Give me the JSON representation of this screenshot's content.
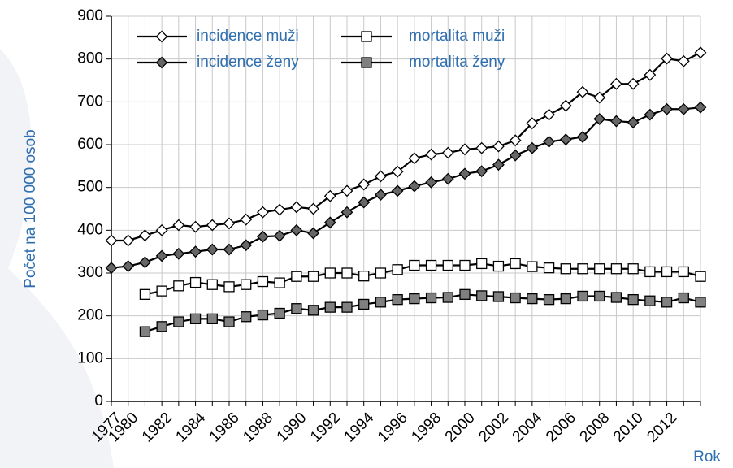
{
  "chart_data": {
    "type": "line",
    "ylabel": "Počet na 100 000 osob",
    "xlabel": "Rok",
    "categories": [
      "1977",
      "1980",
      null,
      "1982",
      null,
      "1984",
      null,
      "1986",
      null,
      "1988",
      null,
      "1990",
      null,
      "1992",
      null,
      "1994",
      null,
      "1996",
      null,
      "1998",
      null,
      "2000",
      null,
      "2002",
      null,
      "2004",
      null,
      "2006",
      null,
      "2008",
      null,
      "2010",
      null,
      "2012",
      null,
      null
    ],
    "ylim": [
      0,
      900
    ],
    "yticks": [
      0,
      100,
      200,
      300,
      400,
      500,
      600,
      700,
      800,
      900
    ],
    "grid": true,
    "series": [
      {
        "name": "incidence muži",
        "marker": "diamond",
        "color": "#ffffff",
        "values": [
          376,
          376,
          388,
          400,
          412,
          408,
          412,
          416,
          425,
          442,
          448,
          454,
          450,
          480,
          492,
          507,
          526,
          537,
          568,
          577,
          581,
          589,
          592,
          596,
          610,
          650,
          670,
          691,
          723,
          710,
          742,
          742,
          763,
          801,
          795,
          815
        ]
      },
      {
        "name": "incidence ženy",
        "marker": "diamond",
        "color": "#666666",
        "values": [
          312,
          316,
          325,
          340,
          345,
          350,
          355,
          355,
          365,
          385,
          387,
          400,
          393,
          418,
          442,
          465,
          483,
          492,
          503,
          512,
          520,
          532,
          538,
          553,
          575,
          592,
          607,
          612,
          618,
          660,
          655,
          652,
          670,
          683,
          683,
          687
        ]
      },
      {
        "name": "mortalita muži",
        "marker": "square",
        "color": "#ffffff",
        "values": [
          null,
          null,
          250,
          258,
          270,
          278,
          273,
          268,
          273,
          280,
          277,
          292,
          292,
          300,
          300,
          293,
          300,
          308,
          318,
          318,
          318,
          318,
          322,
          316,
          322,
          315,
          312,
          310,
          310,
          310,
          310,
          310,
          303,
          303,
          303,
          292
        ]
      },
      {
        "name": "mortalita ženy",
        "marker": "square",
        "color": "#808080",
        "values": [
          null,
          null,
          163,
          175,
          186,
          193,
          193,
          186,
          198,
          202,
          206,
          217,
          213,
          220,
          220,
          227,
          232,
          238,
          240,
          242,
          243,
          250,
          247,
          245,
          242,
          240,
          238,
          240,
          246,
          246,
          243,
          238,
          235,
          232,
          242,
          232
        ]
      }
    ]
  }
}
